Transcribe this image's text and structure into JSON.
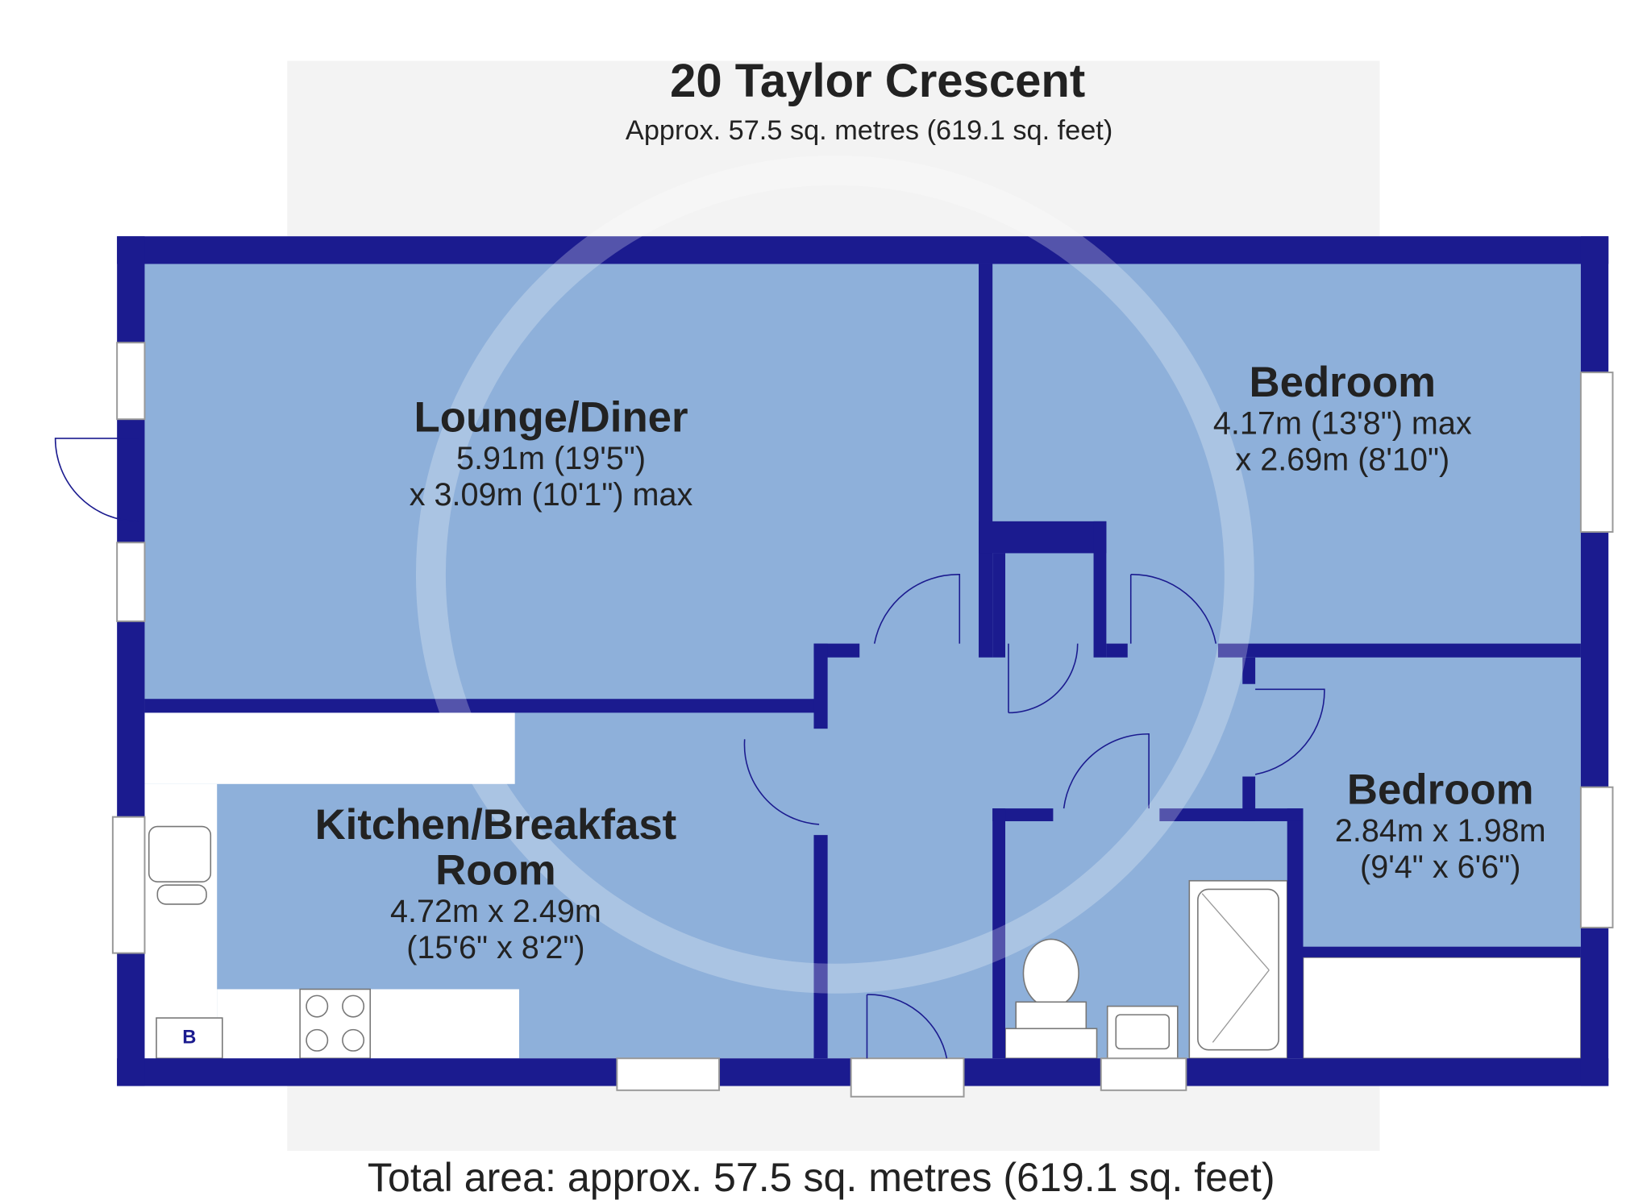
{
  "header": {
    "title": "20 Taylor Crescent",
    "subtitle": "Approx. 57.5 sq. metres (619.1 sq. feet)"
  },
  "rooms": [
    {
      "name": [
        "Lounge/Diner"
      ],
      "dimensions": [
        "5.91m (19'5\")",
        "x 3.09m (10'1\") max"
      ]
    },
    {
      "name": [
        "Bedroom"
      ],
      "dimensions": [
        "4.17m (13'8\") max",
        "x 2.69m (8'10\")"
      ]
    },
    {
      "name": [
        "Kitchen/Breakfast",
        "Room"
      ],
      "dimensions": [
        "4.72m x 2.49m",
        "(15'6\" x 8'2\")"
      ]
    },
    {
      "name": [
        "Bedroom"
      ],
      "dimensions": [
        "2.84m x 1.98m",
        "(9'4\" x 6'6\")"
      ]
    }
  ],
  "fixtures": {
    "boiler": "B"
  },
  "footer": {
    "total_area": "Total area: approx. 57.5 sq. metres (619.1 sq. feet)"
  }
}
